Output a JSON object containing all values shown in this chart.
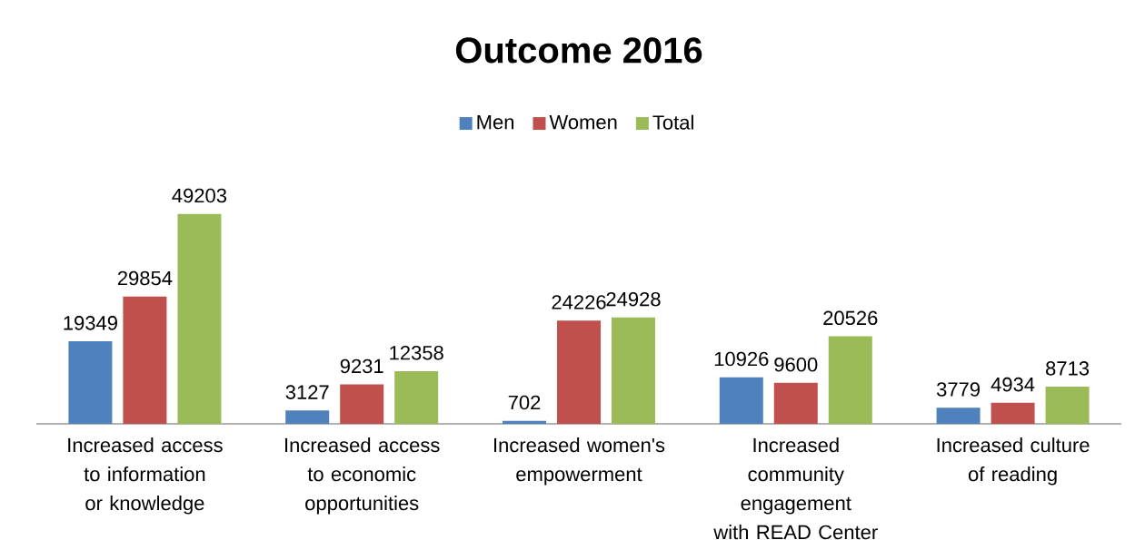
{
  "chart_data": {
    "type": "bar",
    "title": "Outcome 2016",
    "categories": [
      "Increased access to information or knowledge",
      "Increased access to economic opportunities",
      "Increased women's empowerment",
      "Increased community engagement with READ Center",
      "Increased culture of reading"
    ],
    "series": [
      {
        "name": "Men",
        "color": "#4f81bd",
        "values": [
          19349,
          3127,
          702,
          10926,
          3779
        ]
      },
      {
        "name": "Women",
        "color": "#c0504d",
        "values": [
          29854,
          9231,
          24226,
          9600,
          4934
        ]
      },
      {
        "name": "Total",
        "color": "#9bbb59",
        "values": [
          49203,
          12358,
          24928,
          20526,
          8713
        ]
      }
    ],
    "data_labels": true,
    "legend": "top"
  }
}
